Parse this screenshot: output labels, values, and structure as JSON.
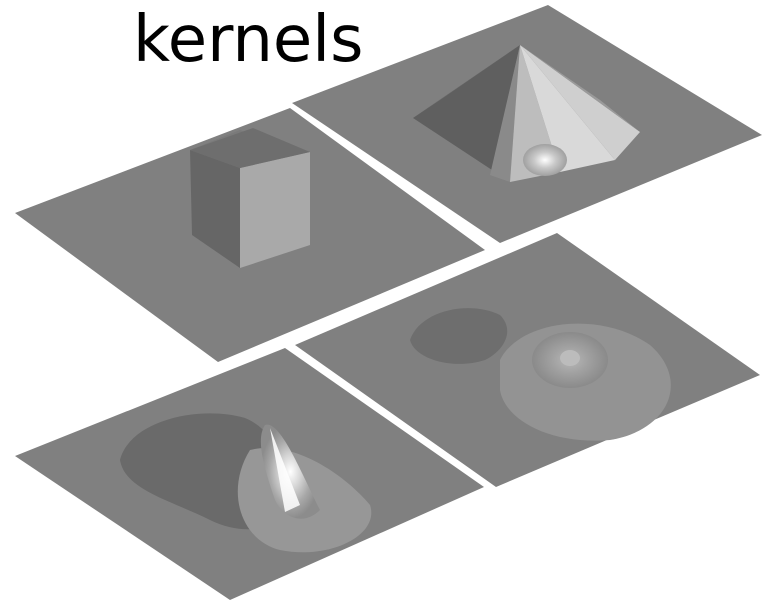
{
  "title": "kernels",
  "colors": {
    "plane": "#808080",
    "plane_dark": "#6a6a6a",
    "highlight": "#ffffff",
    "background": "#ffffff"
  },
  "panels": [
    {
      "name": "box-kernel",
      "shape": "cube"
    },
    {
      "name": "pyramid-kernel",
      "shape": "pyramid"
    },
    {
      "name": "smooth-peak-kernel",
      "shape": "sharp-peak-with-trough"
    },
    {
      "name": "smooth-bump-kernel",
      "shape": "broad-bump-with-trough"
    }
  ]
}
